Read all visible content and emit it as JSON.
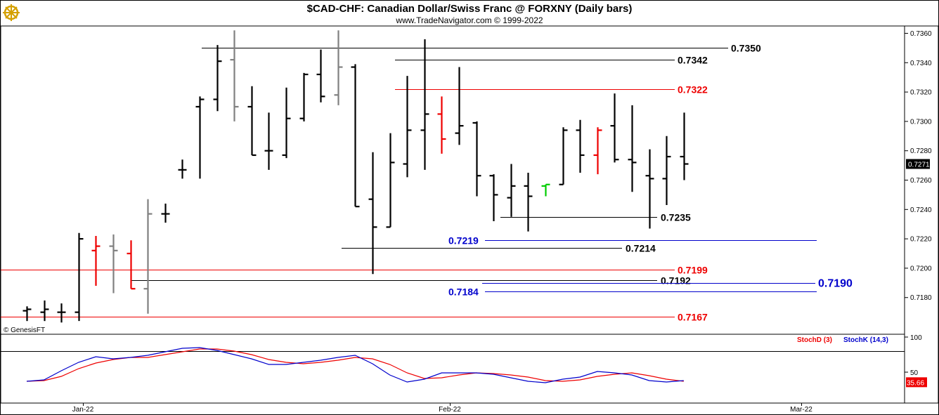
{
  "chart_data": {
    "type": "ohlc",
    "title": "$CAD-CHF:  Canadian Dollar/Swiss Franc @ FORXNY  (Daily bars)",
    "subtitle": "www.TradeNavigator.com © 1999-2022",
    "watermark": "© GenesisFT",
    "logo_icon": "ship-wheel-logo-icon",
    "y_axis": {
      "range": [
        0.7155,
        0.7365
      ],
      "ticks": [
        "0.7180",
        "0.7200",
        "0.7220",
        "0.7240",
        "0.7260",
        "0.7280",
        "0.7300",
        "0.7320",
        "0.7340",
        "0.7360"
      ]
    },
    "last_price": "0.7271",
    "x_labels": [
      "Jan-22",
      "Feb-22",
      "Mar-22"
    ],
    "bars": [
      {
        "o": 0.7171,
        "h": 0.7174,
        "l": 0.7164,
        "c": 0.7172,
        "color": "#000000"
      },
      {
        "o": 0.717,
        "h": 0.7178,
        "l": 0.7164,
        "c": 0.7172,
        "color": "#000000"
      },
      {
        "o": 0.717,
        "h": 0.7176,
        "l": 0.7163,
        "c": 0.717,
        "color": "#000000"
      },
      {
        "o": 0.717,
        "h": 0.7224,
        "l": 0.7164,
        "c": 0.722,
        "color": "#000000"
      },
      {
        "o": 0.7212,
        "h": 0.7222,
        "l": 0.7188,
        "c": 0.7215,
        "color": "#ee0000"
      },
      {
        "o": 0.7215,
        "h": 0.7223,
        "l": 0.7183,
        "c": 0.7212,
        "color": "#808080"
      },
      {
        "o": 0.721,
        "h": 0.7219,
        "l": 0.7186,
        "c": 0.7186,
        "color": "#ee0000"
      },
      {
        "o": 0.7186,
        "h": 0.7247,
        "l": 0.7169,
        "c": 0.7237,
        "color": "#808080"
      },
      {
        "o": 0.7237,
        "h": 0.7244,
        "l": 0.7231,
        "c": 0.7237,
        "color": "#000000"
      },
      {
        "o": 0.7267,
        "h": 0.7274,
        "l": 0.7261,
        "c": 0.7267,
        "color": "#000000"
      },
      {
        "o": 0.731,
        "h": 0.7317,
        "l": 0.7261,
        "c": 0.7315,
        "color": "#000000"
      },
      {
        "o": 0.7315,
        "h": 0.7352,
        "l": 0.7307,
        "c": 0.7341,
        "color": "#000000"
      },
      {
        "o": 0.7342,
        "h": 0.7362,
        "l": 0.73,
        "c": 0.731,
        "color": "#808080"
      },
      {
        "o": 0.731,
        "h": 0.7324,
        "l": 0.7277,
        "c": 0.7277,
        "color": "#000000"
      },
      {
        "o": 0.728,
        "h": 0.7306,
        "l": 0.7267,
        "c": 0.728,
        "color": "#000000"
      },
      {
        "o": 0.7277,
        "h": 0.7323,
        "l": 0.7275,
        "c": 0.7302,
        "color": "#000000"
      },
      {
        "o": 0.7302,
        "h": 0.7333,
        "l": 0.73,
        "c": 0.7332,
        "color": "#000000"
      },
      {
        "o": 0.7332,
        "h": 0.7349,
        "l": 0.7313,
        "c": 0.7317,
        "color": "#000000"
      },
      {
        "o": 0.7318,
        "h": 0.7362,
        "l": 0.7311,
        "c": 0.7337,
        "color": "#808080"
      },
      {
        "o": 0.7337,
        "h": 0.7339,
        "l": 0.7242,
        "c": 0.7242,
        "color": "#000000"
      },
      {
        "o": 0.7247,
        "h": 0.7279,
        "l": 0.7196,
        "c": 0.7228,
        "color": "#000000"
      },
      {
        "o": 0.7228,
        "h": 0.7292,
        "l": 0.7228,
        "c": 0.7272,
        "color": "#000000"
      },
      {
        "o": 0.7271,
        "h": 0.7331,
        "l": 0.7262,
        "c": 0.7294,
        "color": "#000000"
      },
      {
        "o": 0.7294,
        "h": 0.7356,
        "l": 0.7267,
        "c": 0.7305,
        "color": "#000000"
      },
      {
        "o": 0.7305,
        "h": 0.7317,
        "l": 0.7278,
        "c": 0.7288,
        "color": "#ee0000"
      },
      {
        "o": 0.7292,
        "h": 0.7337,
        "l": 0.7284,
        "c": 0.7297,
        "color": "#000000"
      },
      {
        "o": 0.7299,
        "h": 0.73,
        "l": 0.7249,
        "c": 0.7263,
        "color": "#000000"
      },
      {
        "o": 0.7263,
        "h": 0.7264,
        "l": 0.7232,
        "c": 0.725,
        "color": "#000000"
      },
      {
        "o": 0.7248,
        "h": 0.7271,
        "l": 0.7235,
        "c": 0.7256,
        "color": "#000000"
      },
      {
        "o": 0.7256,
        "h": 0.7265,
        "l": 0.7225,
        "c": 0.7249,
        "color": "#000000"
      },
      {
        "o": 0.7256,
        "h": 0.7257,
        "l": 0.7249,
        "c": 0.7257,
        "color": "#00cc00"
      },
      {
        "o": 0.7257,
        "h": 0.7296,
        "l": 0.7257,
        "c": 0.7294,
        "color": "#000000"
      },
      {
        "o": 0.7294,
        "h": 0.7301,
        "l": 0.7265,
        "c": 0.7277,
        "color": "#000000"
      },
      {
        "o": 0.7277,
        "h": 0.7296,
        "l": 0.7264,
        "c": 0.7294,
        "color": "#ee0000"
      },
      {
        "o": 0.7297,
        "h": 0.7319,
        "l": 0.7272,
        "c": 0.7274,
        "color": "#000000"
      },
      {
        "o": 0.7274,
        "h": 0.7311,
        "l": 0.7252,
        "c": 0.7272,
        "color": "#000000"
      },
      {
        "o": 0.7263,
        "h": 0.7281,
        "l": 0.7227,
        "c": 0.7261,
        "color": "#000000"
      },
      {
        "o": 0.7261,
        "h": 0.729,
        "l": 0.7243,
        "c": 0.7276,
        "color": "#000000"
      },
      {
        "o": 0.7276,
        "h": 0.7306,
        "l": 0.726,
        "c": 0.7271,
        "color": "#000000"
      }
    ],
    "levels": [
      {
        "label": "0.7350",
        "value": 0.735,
        "color": "#000000"
      },
      {
        "label": "0.7342",
        "value": 0.7342,
        "color": "#000000"
      },
      {
        "label": "0.7322",
        "value": 0.7322,
        "color": "#ee0000"
      },
      {
        "label": "0.7235",
        "value": 0.7235,
        "color": "#000000"
      },
      {
        "label": "0.7219",
        "value": 0.7219,
        "color": "#0000cc"
      },
      {
        "label": "0.7214",
        "value": 0.7214,
        "color": "#000000"
      },
      {
        "label": "0.7199",
        "value": 0.7199,
        "color": "#ee0000"
      },
      {
        "label": "0.7192",
        "value": 0.7192,
        "color": "#000000"
      },
      {
        "label": "0.7190",
        "value": 0.719,
        "color": "#0000cc"
      },
      {
        "label": "0.7184",
        "value": 0.7184,
        "color": "#0000cc"
      },
      {
        "label": "0.7167",
        "value": 0.7167,
        "color": "#ee0000"
      }
    ],
    "indicator": {
      "legend_d": "StochD (3)",
      "legend_k": "StochK (14,3)",
      "ticks": [
        "100",
        "50"
      ],
      "range": [
        0,
        100
      ],
      "reference_line": 80,
      "last_value": "35.66",
      "stoch_k": [
        37,
        39,
        52,
        64,
        72,
        69,
        71,
        74,
        79,
        84,
        85,
        81,
        75,
        69,
        61,
        61,
        64,
        67,
        71,
        74,
        62,
        46,
        36,
        40,
        49,
        49,
        49,
        47,
        42,
        37,
        35,
        40,
        43,
        51,
        49,
        46,
        38,
        36,
        38
      ],
      "stoch_d": [
        37,
        38,
        44,
        55,
        63,
        68,
        71,
        71,
        75,
        79,
        83,
        83,
        80,
        75,
        68,
        64,
        62,
        64,
        67,
        71,
        69,
        61,
        49,
        41,
        42,
        46,
        49,
        48,
        46,
        43,
        38,
        37,
        39,
        44,
        47,
        49,
        45,
        40,
        37
      ]
    }
  }
}
